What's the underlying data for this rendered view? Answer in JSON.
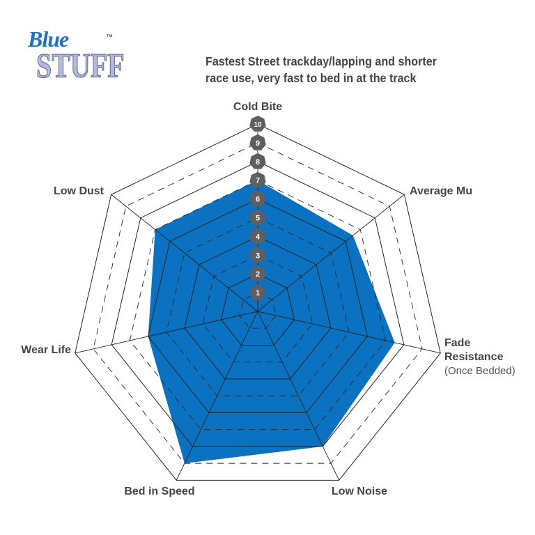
{
  "logo": {
    "line1": "Blue",
    "line2": "STUFF",
    "tm": "™",
    "colors": {
      "blue": "#1a73c4",
      "lavender": "#b3b9de"
    }
  },
  "description": [
    "Fastest Street trackday/lapping and shorter",
    "race use, very fast to bed in at the track"
  ],
  "chart_data": {
    "type": "radar",
    "axes": [
      "Cold Bite",
      "Average Mu",
      "Fade Resistance",
      "Low Noise",
      "Bed in Speed",
      "Wear Life",
      "Low Dust"
    ],
    "axis_sublabels": {
      "Fade Resistance": "(Once Bedded)"
    },
    "values": [
      7,
      6.5,
      7.5,
      8,
      9,
      6,
      7
    ],
    "scale": [
      1,
      10
    ],
    "tick_labels": [
      "1",
      "2",
      "3",
      "4",
      "5",
      "6",
      "7",
      "8",
      "9",
      "10"
    ],
    "fill_color": "#0a72c0",
    "badge_color": "#5f5f61"
  }
}
